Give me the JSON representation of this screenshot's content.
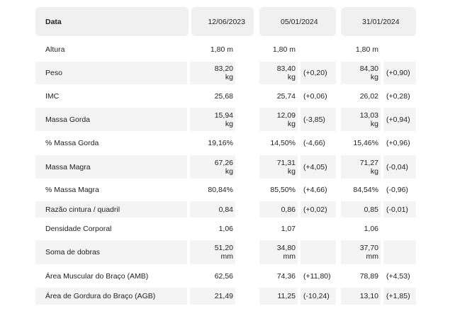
{
  "header": {
    "label": "Data",
    "dates": [
      "12/06/2023",
      "05/01/2024",
      "31/01/2024"
    ]
  },
  "rows": [
    {
      "label": "Altura",
      "v1": "1,80 m",
      "v2": "1,80 m",
      "d2": "",
      "v3": "1,80 m",
      "d3": ""
    },
    {
      "label": "Peso",
      "v1": "83,20\nkg",
      "v2": "83,40\nkg",
      "d2": "(+0,20)",
      "v3": "84,30\nkg",
      "d3": "(+0,90)"
    },
    {
      "label": "IMC",
      "v1": "25,68",
      "v2": "25,74",
      "d2": "(+0,06)",
      "v3": "26,02",
      "d3": "(+0,28)"
    },
    {
      "label": "Massa Gorda",
      "v1": "15,94\nkg",
      "v2": "12,09\nkg",
      "d2": "(-3,85)",
      "v3": "13,03\nkg",
      "d3": "(+0,94)"
    },
    {
      "label": "% Massa Gorda",
      "v1": "19,16%",
      "v2": "14,50%",
      "d2": "(-4,66)",
      "v3": "15,46%",
      "d3": "(+0,96)"
    },
    {
      "label": "Massa Magra",
      "v1": "67,26\nkg",
      "v2": "71,31\nkg",
      "d2": "(+4,05)",
      "v3": "71,27\nkg",
      "d3": "(-0,04)"
    },
    {
      "label": "% Massa Magra",
      "v1": "80,84%",
      "v2": "85,50%",
      "d2": "(+4,66)",
      "v3": "84,54%",
      "d3": "(-0,96)"
    },
    {
      "label": "Razão cintura / quadril",
      "v1": "0,84",
      "v2": "0,86",
      "d2": "(+0,02)",
      "v3": "0,85",
      "d3": "(-0,01)"
    },
    {
      "label": "Densidade Corporal",
      "v1": "1,06",
      "v2": "1,07",
      "d2": "",
      "v3": "1,06",
      "d3": ""
    },
    {
      "label": "Soma de dobras",
      "v1": "51,20\nmm",
      "v2": "34,80\nmm",
      "d2": "",
      "v3": "37,70\nmm",
      "d3": ""
    },
    {
      "label": "Área Muscular do Braço (AMB)",
      "v1": "62,56",
      "v2": "74,36",
      "d2": "(+11,80)",
      "v3": "78,89",
      "d3": "(+4,53)"
    },
    {
      "label": "Área de Gordura do Braço (AGB)",
      "v1": "21,49",
      "v2": "11,25",
      "d2": "(-10,24)",
      "v3": "13,10",
      "d3": "(+1,85)"
    }
  ]
}
